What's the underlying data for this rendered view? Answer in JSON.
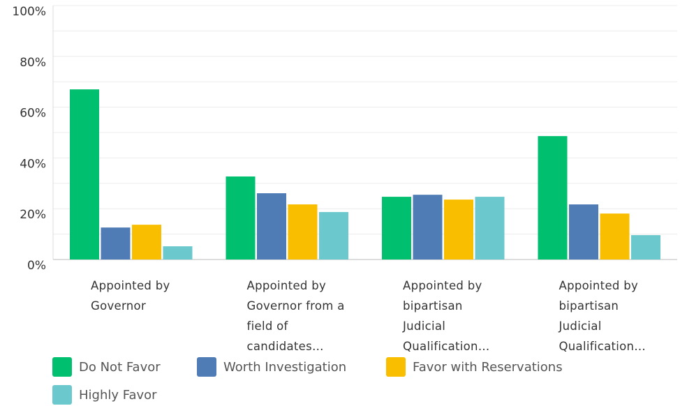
{
  "chart_data": {
    "type": "bar",
    "categories": [
      "Appointed by Governor",
      "Appointed by Governor from a field of candidates…",
      "Appointed by bipartisan Judicial Qualification…",
      "Appointed by bipartisan Judicial Qualification…"
    ],
    "series": [
      {
        "name": "Do Not Favor",
        "color": "#00bf6f",
        "values": [
          67.0,
          32.7,
          24.7,
          48.6
        ]
      },
      {
        "name": "Worth Investigation",
        "color": "#507cb6",
        "values": [
          12.6,
          26.1,
          25.5,
          21.7
        ]
      },
      {
        "name": "Favor with Reservations",
        "color": "#f9be00",
        "values": [
          13.7,
          21.7,
          23.6,
          18.1
        ]
      },
      {
        "name": "Highly Favor",
        "color": "#6bc8cd",
        "values": [
          5.2,
          18.7,
          24.7,
          9.6
        ]
      }
    ],
    "ylim": [
      0,
      100
    ],
    "yticks": [
      {
        "value": 0,
        "label": "0%"
      },
      {
        "value": 20,
        "label": "20%"
      },
      {
        "value": 40,
        "label": "40%"
      },
      {
        "value": 60,
        "label": "60%"
      },
      {
        "value": 80,
        "label": "80%"
      },
      {
        "value": 100,
        "label": "100%"
      }
    ],
    "minor_yticks": [
      10,
      30,
      50,
      70,
      90
    ],
    "grid": true,
    "legend": "bottom"
  }
}
